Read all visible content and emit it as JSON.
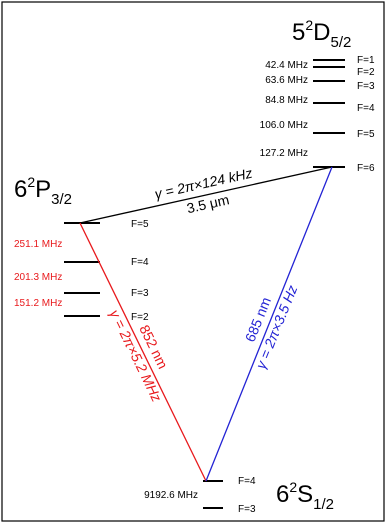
{
  "levels": {
    "D": {
      "n": "5",
      "sup": "2",
      "L": "D",
      "sub": "5/2"
    },
    "P": {
      "n": "6",
      "sup": "2",
      "L": "P",
      "sub": "3/2"
    },
    "S": {
      "n": "6",
      "sup": "2",
      "L": "S",
      "sub": "1/2"
    }
  },
  "d_hyperfine": {
    "F_labels": [
      "F=1",
      "F=2",
      "F=3",
      "F=4",
      "F=5",
      "F=6"
    ],
    "splittings": [
      "42.4 MHz",
      "63.6 MHz",
      "84.8 MHz",
      "106.0 MHz",
      "127.2 MHz"
    ]
  },
  "p_hyperfine": {
    "F_labels": [
      "F=5",
      "F=4",
      "F=3",
      "F=2"
    ],
    "splittings": [
      "251.1 MHz",
      "201.3 MHz",
      "151.2 MHz"
    ]
  },
  "s_hyperfine": {
    "F_labels": [
      "F=4",
      "F=3"
    ],
    "splittings": [
      "9192.6 MHz"
    ]
  },
  "transitions": {
    "pd": {
      "wavelength": "3.5 μm",
      "gamma": "γ = 2π×124 kHz",
      "color": "#000000"
    },
    "sp": {
      "wavelength": "852 nm",
      "gamma": "γ = 2π×5.2 MHz",
      "color": "#e8191c"
    },
    "sd": {
      "wavelength": "685 nm",
      "gamma": "γ = 2π×3.5 Hz",
      "color": "#2323d4"
    }
  },
  "colors": {
    "red": "#e8191c",
    "blue": "#2323d4",
    "black": "#000000"
  }
}
